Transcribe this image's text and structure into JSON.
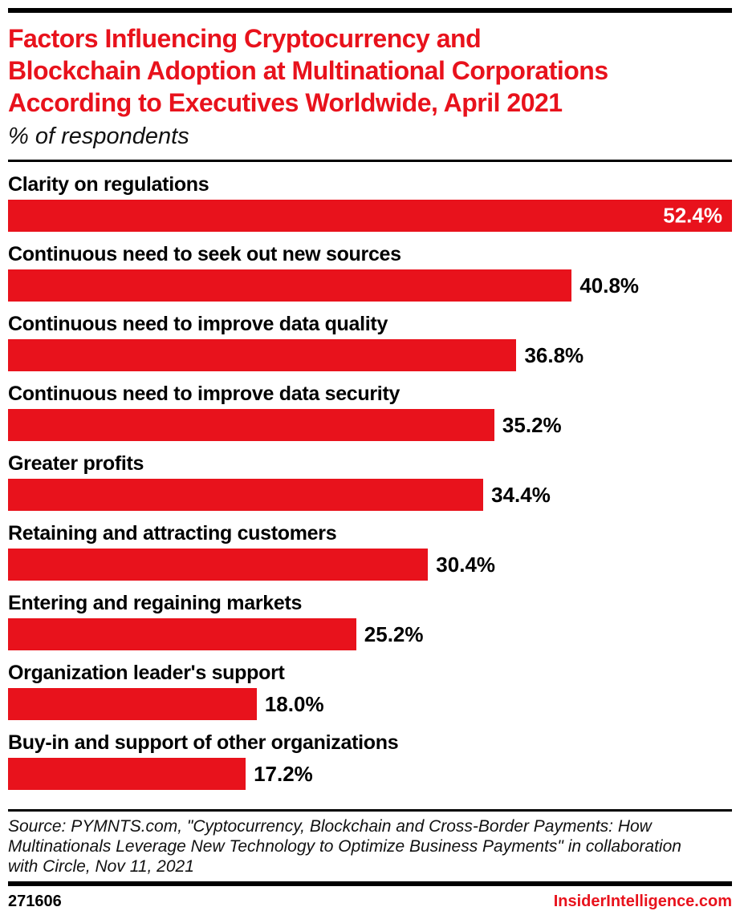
{
  "accent_color": "#e8121c",
  "header": {
    "title_lines": [
      "Factors Influencing Cryptocurrency and",
      "Blockchain Adoption at Multinational Corporations",
      "According to Executives Worldwide, April 2021"
    ],
    "subtitle": "% of respondents"
  },
  "chart_data": {
    "type": "bar",
    "orientation": "horizontal",
    "title": "Factors Influencing Cryptocurrency and Blockchain Adoption at Multinational Corporations According to Executives Worldwide, April 2021",
    "subtitle": "% of respondents",
    "categories": [
      "Clarity on regulations",
      "Continuous need to seek out new sources",
      "Continuous need to improve data quality",
      "Continuous need to improve data security",
      "Greater profits",
      "Retaining and attracting customers",
      "Entering and regaining markets",
      "Organization leader's support",
      "Buy-in and support of other organizations"
    ],
    "values": [
      52.4,
      40.8,
      36.8,
      35.2,
      34.4,
      30.4,
      25.2,
      18.0,
      17.2
    ],
    "value_labels": [
      "52.4%",
      "40.8%",
      "36.8%",
      "35.2%",
      "34.4%",
      "30.4%",
      "25.2%",
      "18.0%",
      "17.2%"
    ],
    "xlim": [
      0,
      52.4
    ],
    "bar_color": "#e8121c",
    "grid": false,
    "legend": "none",
    "value_label_style": "outside-right, inside-white for longest bar"
  },
  "source": {
    "lines": [
      "Source: PYMNTS.com, \"Cyptocurrency, Blockchain and Cross-Border Payments: How",
      "Multinationals Leverage New Technology to Optimize Business Payments\" in collaboration",
      "with Circle, Nov 11, 2021"
    ]
  },
  "footer": {
    "chart_id": "271606",
    "brand": "InsiderIntelligence.com"
  }
}
